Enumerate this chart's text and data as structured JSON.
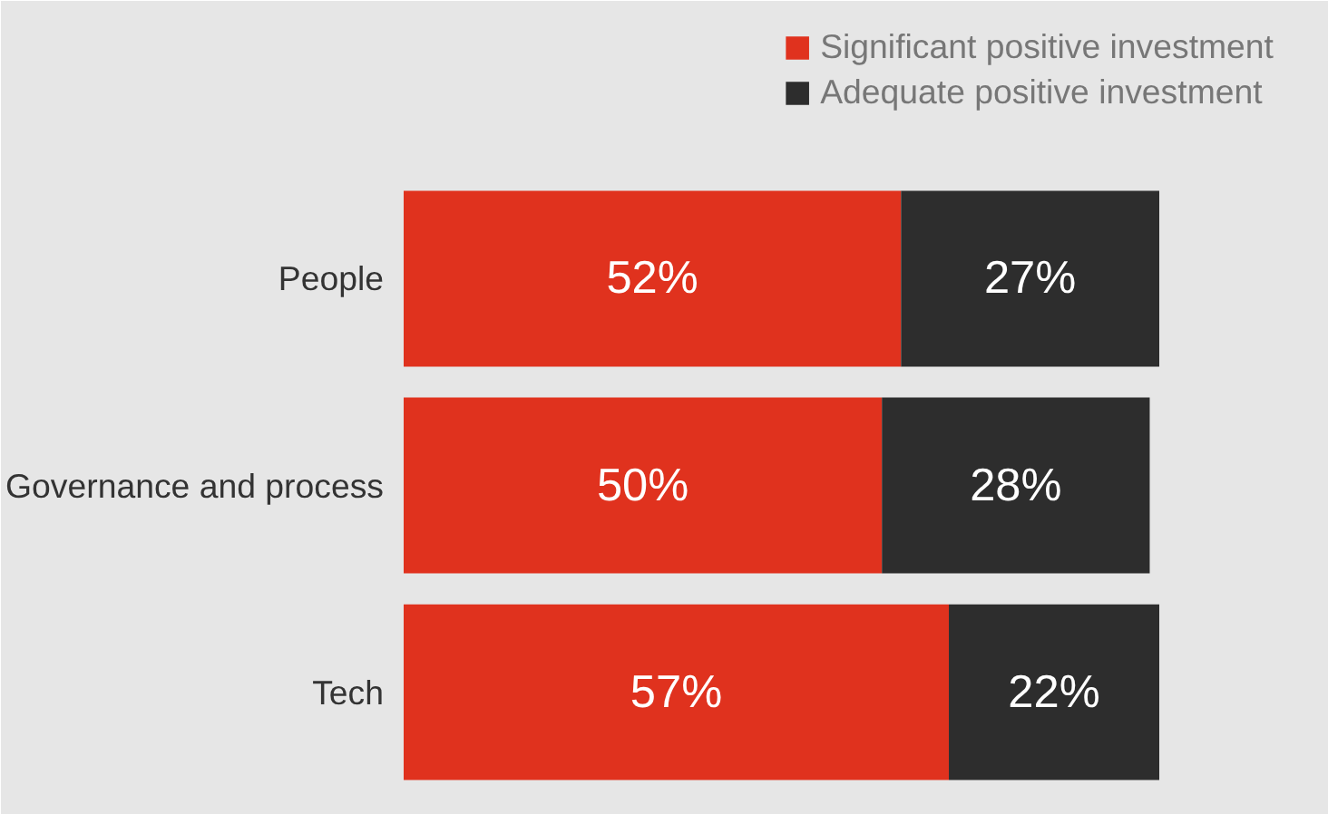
{
  "chart_data": {
    "type": "bar",
    "orientation": "horizontal",
    "stacked": true,
    "categories": [
      "People",
      "Governance and process",
      "Tech"
    ],
    "series": [
      {
        "name": "Significant positive investment",
        "color": "#e0321e",
        "values": [
          52,
          50,
          57
        ],
        "value_labels": [
          "52%",
          "50%",
          "57%"
        ]
      },
      {
        "name": "Adequate positive investment",
        "color": "#2d2d2d",
        "values": [
          27,
          28,
          22
        ],
        "value_labels": [
          "27%",
          "28%",
          "22%"
        ]
      }
    ],
    "legend": "top right"
  }
}
